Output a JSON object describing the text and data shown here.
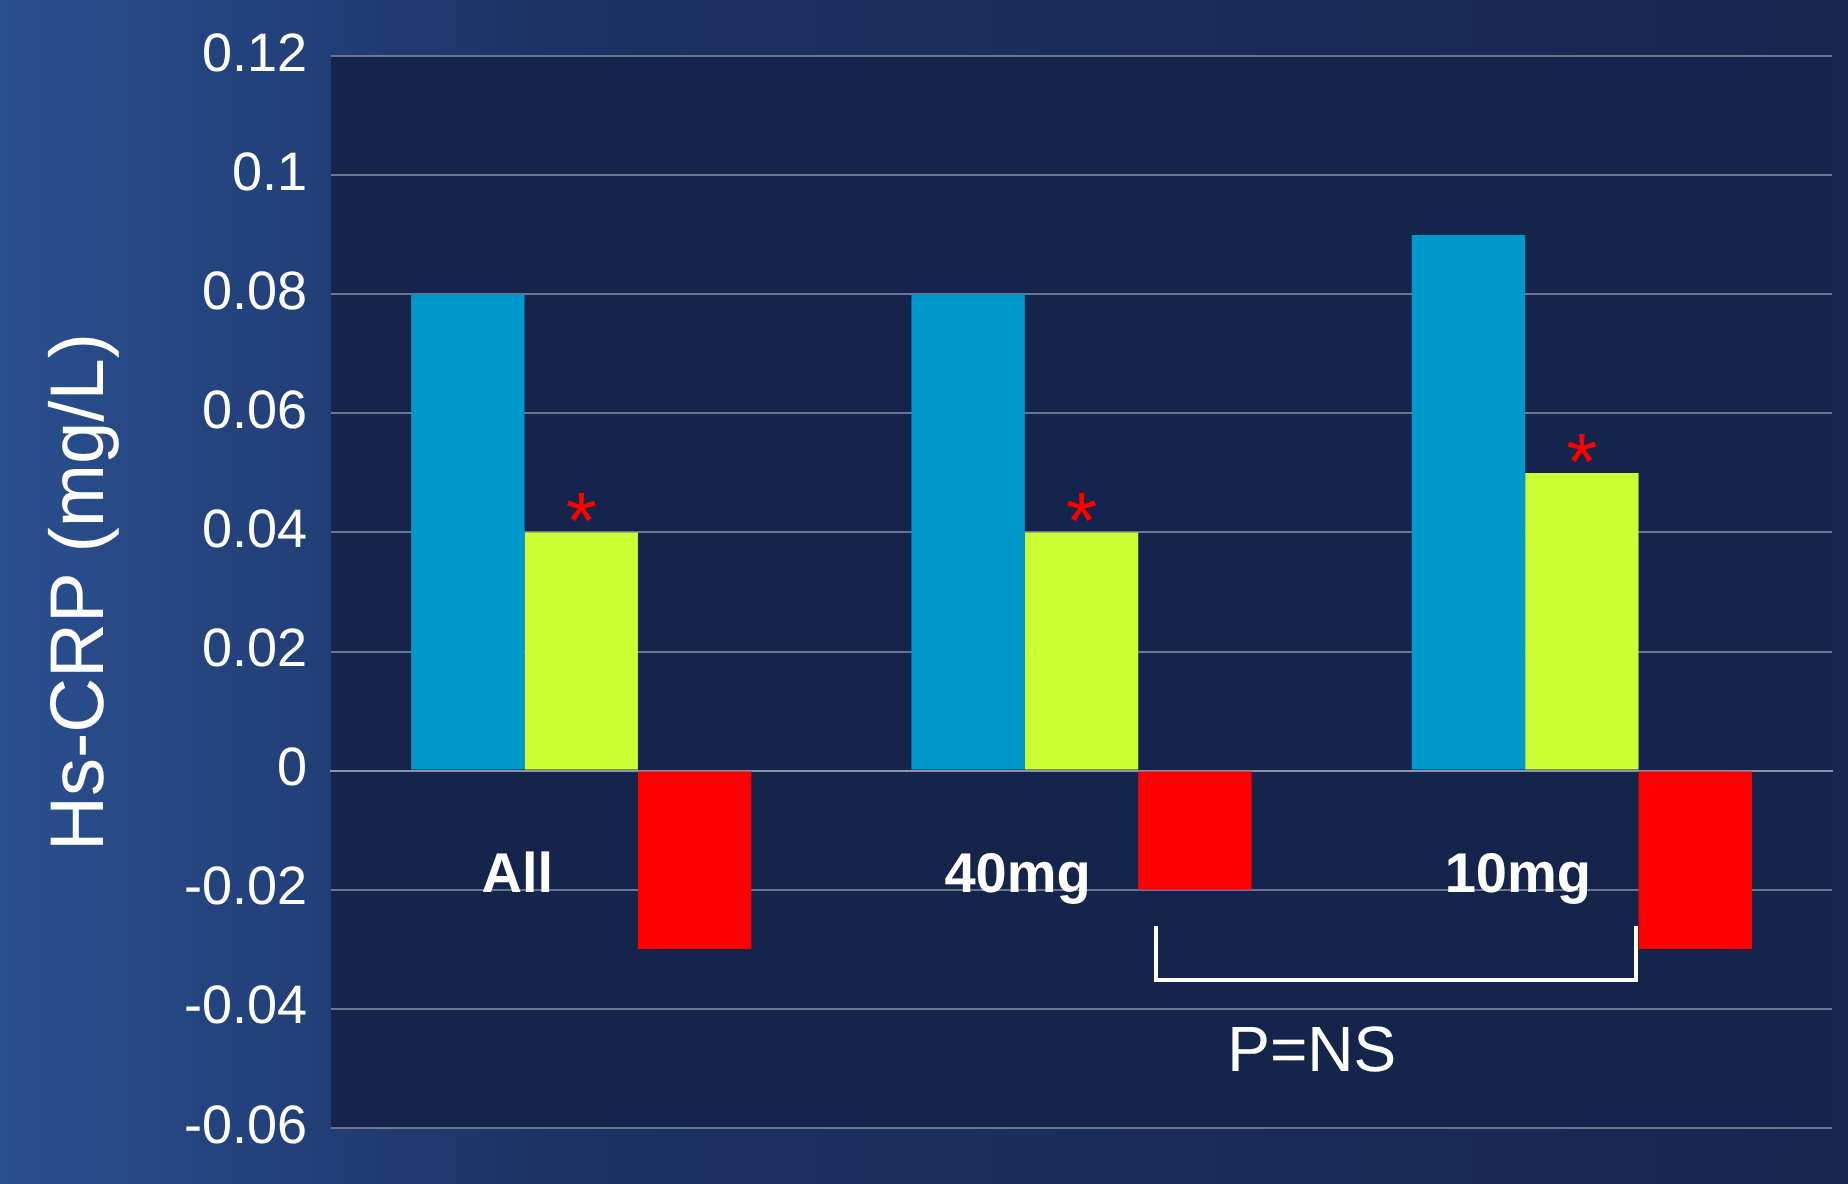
{
  "chart_data": {
    "type": "bar",
    "ylabel": "Hs-CRP (mg/L)",
    "categories": [
      "All",
      "40mg",
      "10mg"
    ],
    "series": [
      {
        "color": "#0099cc",
        "values": [
          0.08,
          0.08,
          0.09
        ]
      },
      {
        "color": "#ccff33",
        "values": [
          0.04,
          0.04,
          0.05
        ]
      },
      {
        "color": "#ff0000",
        "values": [
          -0.03,
          -0.02,
          -0.03
        ]
      }
    ],
    "ylim": [
      -0.06,
      0.12
    ],
    "yticks": [
      -0.06,
      -0.04,
      -0.02,
      0,
      0.02,
      0.04,
      0.06,
      0.08,
      0.1,
      0.12
    ],
    "grid": "y",
    "legend": false,
    "annotations": [
      {
        "text": "*",
        "x": "All",
        "y": 0.04
      },
      {
        "text": "*",
        "x": "40mg",
        "y": 0.04
      },
      {
        "text": "*",
        "x": "10mg",
        "y": 0.05
      },
      "P=NS"
    ]
  }
}
